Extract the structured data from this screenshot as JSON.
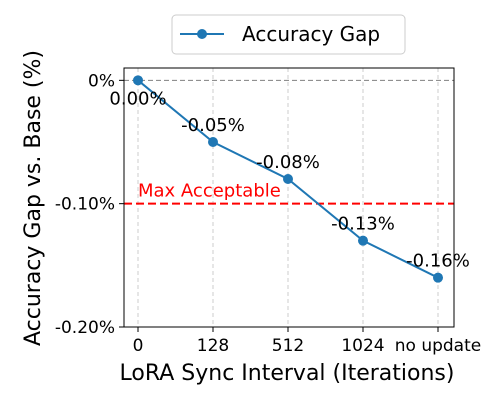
{
  "chart_data": {
    "type": "line",
    "xlabel": "LoRA Sync Interval (Iterations)",
    "ylabel": "Accuracy Gap vs. Base (%)",
    "categories": [
      "0",
      "128",
      "512",
      "1024",
      "no update"
    ],
    "y_ticks": [
      {
        "value": 0.0,
        "label": "0%"
      },
      {
        "value": -0.1,
        "label": "-0.10%"
      },
      {
        "value": -0.2,
        "label": "-0.20%"
      }
    ],
    "ylim": [
      -0.2,
      0.01
    ],
    "grid": {
      "x": true,
      "y": false
    },
    "legend_position": "top-center",
    "series": [
      {
        "name": "Accuracy Gap",
        "color": "#1f77b4",
        "values": [
          0.0,
          -0.05,
          -0.08,
          -0.13,
          -0.16
        ],
        "labels": [
          "0.00%",
          "-0.05%",
          "-0.08%",
          "-0.13%",
          "-0.16%"
        ]
      }
    ],
    "reference_lines": [
      {
        "value": 0.0,
        "color": "#808080",
        "style": "dashed",
        "label": ""
      },
      {
        "value": -0.1,
        "color": "#ff0000",
        "style": "dashed",
        "label": "Max Acceptable"
      }
    ]
  }
}
